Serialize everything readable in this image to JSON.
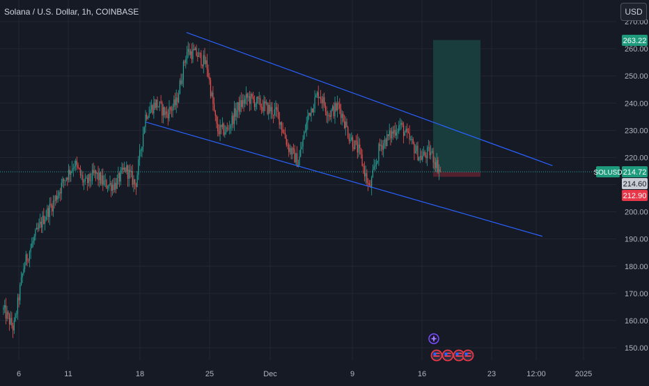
{
  "header": {
    "symbol_title": "Solana / U.S. Dollar, 1h, COINBASE",
    "currency_label": "USD"
  },
  "colors": {
    "background": "#161a25",
    "grid": "#242733",
    "axis_text": "#b2b5be",
    "candle_up": "#26a69a",
    "candle_down": "#ef5350",
    "channel_line": "#2962ff",
    "target_zone": "#1a4040",
    "stop_zone": "#5b2430",
    "badge_green": "#1e9b7d",
    "badge_red": "#e9374a",
    "badge_gray": "#c9ccd4"
  },
  "chart_data": {
    "type": "candlestick",
    "symbol": "SOLUSD",
    "interval": "1h",
    "exchange": "COINBASE",
    "x_ticks": [
      "6",
      "11",
      "18",
      "25",
      "Dec",
      "9",
      "16",
      "23",
      "12:00",
      "2025"
    ],
    "y_ticks": [
      "150.00",
      "160.00",
      "170.00",
      "180.00",
      "190.00",
      "200.00",
      "210.00",
      "220.00",
      "230.00",
      "240.00",
      "250.00",
      "260.00",
      "270.00"
    ],
    "ylim": [
      145,
      275
    ],
    "series_path": [
      [
        "Nov 4",
        164
      ],
      [
        "Nov 5",
        157
      ],
      [
        "Nov 6",
        180
      ],
      [
        "Nov 7",
        190
      ],
      [
        "Nov 8",
        198
      ],
      [
        "Nov 9",
        204
      ],
      [
        "Nov 10",
        212
      ],
      [
        "Nov 11",
        218
      ],
      [
        "Nov 12",
        210
      ],
      [
        "Nov 13",
        214
      ],
      [
        "Nov 14",
        210
      ],
      [
        "Nov 15",
        210
      ],
      [
        "Nov 16",
        216
      ],
      [
        "Nov 17",
        210
      ],
      [
        "Nov 18",
        236
      ],
      [
        "Nov 19",
        240
      ],
      [
        "Nov 20",
        236
      ],
      [
        "Nov 21",
        240
      ],
      [
        "Nov 22",
        259
      ],
      [
        "Nov 23",
        258
      ],
      [
        "Nov 24",
        254
      ],
      [
        "Nov 25",
        230
      ],
      [
        "Nov 26",
        230
      ],
      [
        "Nov 27",
        238
      ],
      [
        "Nov 28",
        242
      ],
      [
        "Nov 29",
        240
      ],
      [
        "Nov 30",
        238
      ],
      [
        "Dec 1",
        236
      ],
      [
        "Dec 2",
        224
      ],
      [
        "Dec 3",
        218
      ],
      [
        "Dec 4",
        236
      ],
      [
        "Dec 5",
        244
      ],
      [
        "Dec 6",
        236
      ],
      [
        "Dec 7",
        239
      ],
      [
        "Dec 8",
        228
      ],
      [
        "Dec 9",
        222
      ],
      [
        "Dec 10",
        208
      ],
      [
        "Dec 11",
        224
      ],
      [
        "Dec 12",
        228
      ],
      [
        "Dec 13",
        232
      ],
      [
        "Dec 14",
        226
      ],
      [
        "Dec 15",
        220
      ],
      [
        "Dec 16",
        222
      ],
      [
        "Dec 17",
        214.72
      ]
    ],
    "annotations": {
      "channel_upper": {
        "from": [
          "Nov 22",
          266
        ],
        "to": [
          "Dec 28",
          217
        ]
      },
      "channel_lower": {
        "from": [
          "Nov 18",
          233
        ],
        "to": [
          "Dec 27",
          191
        ]
      },
      "long_position": {
        "entry": 214.6,
        "target": 263.22,
        "stop": 212.9
      }
    },
    "price_labels": [
      {
        "name": "target",
        "text": "263.22"
      },
      {
        "name": "last",
        "symbol": "SOLUSD",
        "text": "214.72"
      },
      {
        "name": "entry",
        "text": "214.60"
      },
      {
        "name": "stop",
        "text": "212.90"
      }
    ]
  }
}
